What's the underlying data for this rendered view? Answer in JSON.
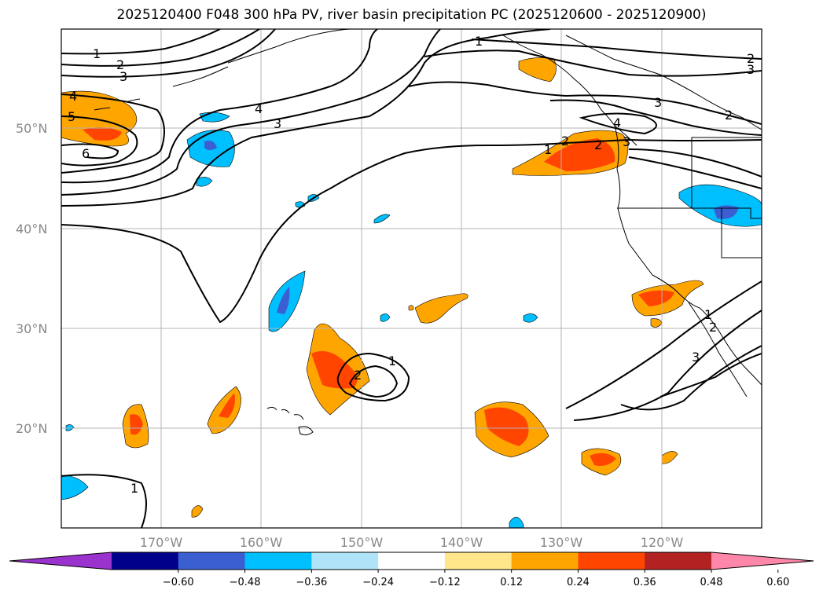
{
  "title": "2025120400 F048 300 hPa PV, river basin precipitation PC (2025120600 - 2025120900)",
  "lat_labels": [
    "50°N",
    "40°N",
    "30°N",
    "20°N"
  ],
  "lon_labels": [
    "170°W",
    "160°W",
    "150°W",
    "140°W",
    "130°W",
    "120°W"
  ],
  "contour_labels": [
    "1",
    "2",
    "3",
    "4",
    "5",
    "6",
    "4",
    "3",
    "1",
    "2",
    "3",
    "3",
    "2",
    "3",
    "2",
    "1",
    "2",
    "4",
    "1",
    "2",
    "3",
    "1",
    "2",
    "1"
  ],
  "colorbar": {
    "ticks": [
      "−0.60",
      "−0.48",
      "−0.36",
      "−0.24",
      "−0.12",
      "0.12",
      "0.24",
      "0.36",
      "0.48",
      "0.60"
    ],
    "colors": [
      "#9a32cd",
      "#00008b",
      "#3b5fd0",
      "#00bfff",
      "#aee3f8",
      "#ffffff",
      "#ffe68a",
      "#ffa500",
      "#ff4500",
      "#b22222",
      "#ff88aa"
    ]
  },
  "colors": {
    "positive_fill": "#ffa500",
    "positive_core": "#ff4500",
    "negative_fill": "#00bfff",
    "negative_core": "#3b5fd0",
    "gridline": "#b3b3b3",
    "contour": "#000000"
  },
  "map_data": {
    "extent": {
      "lon": [
        -180,
        -110
      ],
      "lat": [
        10,
        60
      ]
    },
    "field": "300 hPa PV contours with river basin precipitation PC shading"
  }
}
